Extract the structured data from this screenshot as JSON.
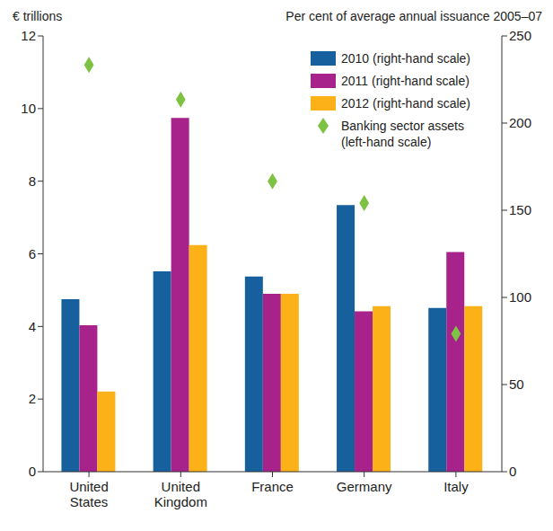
{
  "chart_data": {
    "type": "bar",
    "y_label": "€ trillions",
    "y2_label": "Per cent of average annual issuance 2005–07",
    "categories": [
      "United States",
      "United Kingdom",
      "France",
      "Germany",
      "Italy"
    ],
    "series": [
      {
        "name": "2010 (right-hand scale)",
        "color": "#17609e",
        "axis": "y2",
        "values": [
          99,
          115,
          112,
          153,
          94
        ]
      },
      {
        "name": "2011 (right-hand scale)",
        "color": "#a8228c",
        "axis": "y2",
        "values": [
          84,
          203,
          102,
          92,
          126
        ]
      },
      {
        "name": "2012 (right-hand scale)",
        "color": "#fbb117",
        "axis": "y2",
        "values": [
          46,
          130,
          102,
          95,
          95
        ]
      },
      {
        "name": "Banking sector assets (left-hand scale)",
        "type": "scatter",
        "marker": "diamond",
        "color": "#7dc242",
        "values": [
          11.2,
          10.25,
          8.0,
          7.4,
          3.8
        ]
      }
    ],
    "ylim": [
      0,
      12
    ],
    "yticks": [
      0,
      2,
      4,
      6,
      8,
      10,
      12
    ],
    "y2lim": [
      0,
      250
    ],
    "y2ticks": [
      0,
      50,
      100,
      150,
      200,
      250
    ],
    "grid": false,
    "legend": "upper right"
  }
}
